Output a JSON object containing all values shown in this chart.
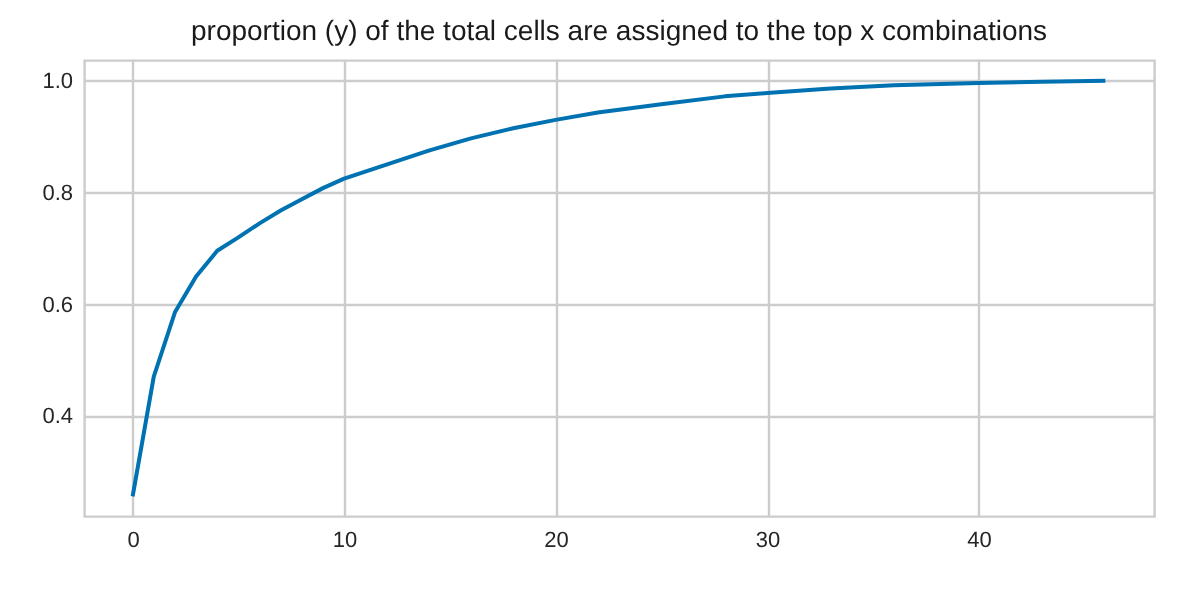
{
  "chart_data": {
    "type": "line",
    "title": "proportion (y) of the total cells are assigned to the top x combinations",
    "x": [
      0,
      1,
      2,
      3,
      4,
      5,
      6,
      7,
      8,
      9,
      10,
      12,
      14,
      16,
      18,
      20,
      22,
      25,
      28,
      30,
      33,
      36,
      40,
      43,
      46
    ],
    "series": [
      {
        "color": "#0072b2",
        "values": [
          0.257,
          0.471,
          0.586,
          0.65,
          0.696,
          0.72,
          0.745,
          0.768,
          0.788,
          0.808,
          0.825,
          0.85,
          0.875,
          0.897,
          0.915,
          0.93,
          0.943,
          0.958,
          0.972,
          0.978,
          0.986,
          0.992,
          0.996,
          0.998,
          1.0
        ]
      }
    ],
    "xlim": [
      -2.3,
      48.3
    ],
    "ylim": [
      0.222,
      1.037
    ],
    "xticks": [
      0,
      10,
      20,
      30,
      40
    ],
    "yticks": [
      0.4,
      0.6,
      0.8,
      {
        "value": 1,
        "label": "1.0"
      }
    ],
    "grid": true,
    "marker": "none",
    "line_style": "solid"
  }
}
